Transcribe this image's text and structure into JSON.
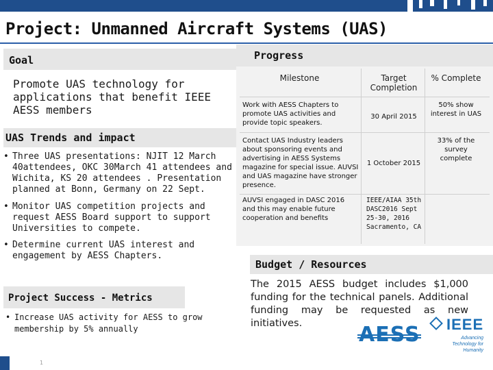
{
  "title": "Project: Unmanned Aircraft Systems (UAS)",
  "goal": {
    "heading": "Goal",
    "text": "Promote UAS technology for applications that benefit IEEE AESS members"
  },
  "trends": {
    "heading": "UAS Trends and impact",
    "bullets": [
      "Three UAS presentations: NJIT 12 March 40attendees, OKC 30March 41 attendees and Wichita, KS 20 attendees . Presentation planned at Bonn, Germany on 22 Sept.",
      "Monitor UAS competition projects and request AESS Board support to support Universities to compete.",
      "Determine current UAS interest and engagement by AESS Chapters."
    ]
  },
  "metrics": {
    "heading": "Project Success - Metrics",
    "bullets": [
      "Increase UAS activity for AESS to grow membership by 5% annually"
    ]
  },
  "progress": {
    "heading": "Progress",
    "columns": [
      "Milestone",
      "Target Completion",
      "% Complete"
    ],
    "rows": [
      {
        "milestone": "Work with AESS Chapters to promote UAS activities and provide topic speakers.",
        "target": "30 April 2015",
        "percent": "50% show interest in UAS"
      },
      {
        "milestone": "Contact UAS Industry leaders about sponsoring events and advertising in AESS Systems magazine for special issue. AUVSI and UAS magazine have stronger presence.",
        "target": "1 October 2015",
        "percent": "33% of the survey complete"
      },
      {
        "milestone": "AUVSI engaged in DASC 2016 and this may enable future cooperation and benefits",
        "target": "IEEE/AIAA 35th DASC2016 Sept 25-30, 2016 Sacramento, CA",
        "percent": ""
      }
    ]
  },
  "budget": {
    "heading": "Budget / Resources",
    "text": "The 2015 AESS budget includes $1,000 funding for the technical panels. Additional funding may be requested as new initiatives."
  },
  "logos": {
    "aess": "AESS",
    "ieee": "IEEE",
    "ieee_tagline": "Advancing Technology for Humanity"
  },
  "slide_number": "1",
  "colors": {
    "topbar": "#1f4e8c",
    "rule": "#2a5ea8",
    "band": "#e6e6e6",
    "logo_blue": "#1b6fb5"
  }
}
